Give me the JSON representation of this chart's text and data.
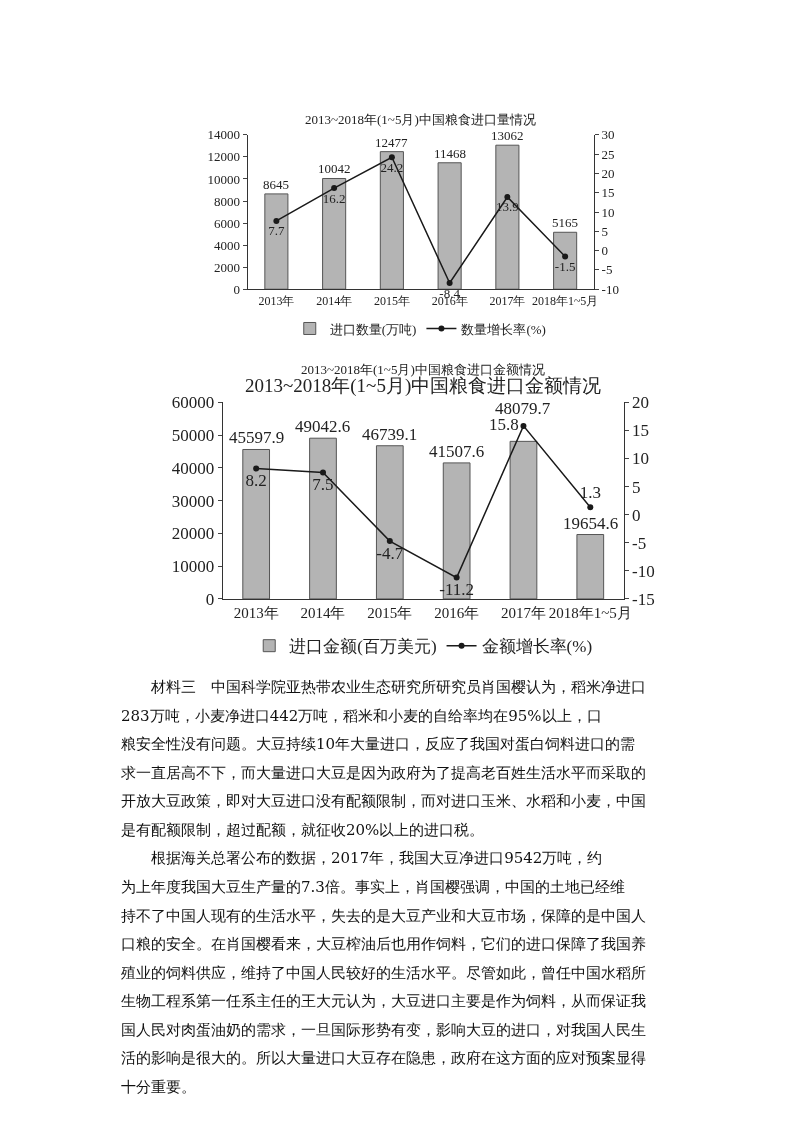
{
  "chart_data": [
    {
      "type": "bar",
      "title": "2013~2018年(1~5月)中国粮食进口量情况",
      "categories": [
        "2013年",
        "2014年",
        "2015年",
        "2016年",
        "2017年",
        "2018年1~5月"
      ],
      "series": [
        {
          "name": "进口数量(万吨)",
          "color": "#b4b4b4",
          "values": [
            8645,
            10042,
            12477,
            11468,
            13062,
            5165
          ]
        },
        {
          "name": "数量增长率(%)",
          "type": "line",
          "axis": "y2",
          "color": "#1a1a1a",
          "values": [
            7.7,
            16.2,
            24.2,
            -8.4,
            13.9,
            -1.5
          ]
        }
      ],
      "ylim": [
        0,
        14000
      ],
      "yticks": [
        0,
        2000,
        4000,
        6000,
        8000,
        10000,
        12000,
        14000
      ],
      "y2lim": [
        -10,
        30
      ],
      "y2ticks": [
        -10,
        -5,
        0,
        5,
        10,
        15,
        20,
        25,
        30
      ],
      "data_labels": true,
      "legend": "bottom",
      "grid": false,
      "marker": "circle",
      "line_style": "solid"
    },
    {
      "type": "bar",
      "title": "2013~2018年(1~5月)中国粮食进口金额情况",
      "subtitle": "2013~2018年(1~5月)中国粮食进口金额情况",
      "categories": [
        "2013年",
        "2014年",
        "2015年",
        "2016年",
        "2017年",
        "2018年1~5月"
      ],
      "series": [
        {
          "name": "进口金额(百万美元)",
          "color": "#b4b4b4",
          "values": [
            45597.9,
            49042.6,
            46739.1,
            41507.6,
            48079.7,
            19654.6
          ]
        },
        {
          "name": "金额增长率(%)",
          "type": "line",
          "axis": "y2",
          "color": "#1a1a1a",
          "values": [
            8.2,
            7.5,
            -4.7,
            -11.2,
            15.8,
            1.3
          ]
        }
      ],
      "ylim": [
        0,
        60000
      ],
      "yticks": [
        0,
        10000,
        20000,
        30000,
        40000,
        50000,
        60000
      ],
      "y2lim": [
        -15,
        20
      ],
      "y2ticks": [
        -15,
        -10,
        -5,
        0,
        5,
        10,
        15,
        20
      ],
      "data_labels": true,
      "legend": "bottom",
      "grid": false,
      "marker": "circle",
      "line_style": "solid",
      "annotations": [
        "材料三　中国科学院亚热带农业生态研究所研究员肖国樱认为，稻米净进口283万吨，小麦净进口442万吨，稻米和小麦的自给率均在95%以上，口粮安全性没有问题。大豆持续10年大量进口，反应了我国对蛋白饲料进口的需求一直居高不下，而大量进口大豆是因为政府为了提高老百姓生活水平而采取的开放大豆政策，即对大豆进口没有配额限制，而对进口玉米、水稻和小麦，中国是有配额限制，超过配额，就征收20%以上的进口税。",
        "根据海关总署公布的数据，2017年，我国大豆净进口9542万吨，约为上年度我国大豆生产量的7.3倍。事实上，肖国樱强调，中国的土地已经维持不了中国人现有的生活水平，失去的是大豆产业和大豆市场，保障的是中国人口粮的安全。在肖国樱看来，大豆榨油后也用作饲料，它们的进口保障了我国养殖业的饲料供应，维持了中国人民较好的生活水平。尽管如此，曾任中国水稻所生物工程系第一任系主任的王大元认为，大豆进口主要是作为饲料，从而保证我国人民对肉蛋油奶的需求，一旦国际形势有变，影响大豆的进口，对我国人民生活的影响是很大的。所以大量进口大豆存在隐患，政府在这方面的应对预案显得十分重要。"
      ]
    }
  ]
}
